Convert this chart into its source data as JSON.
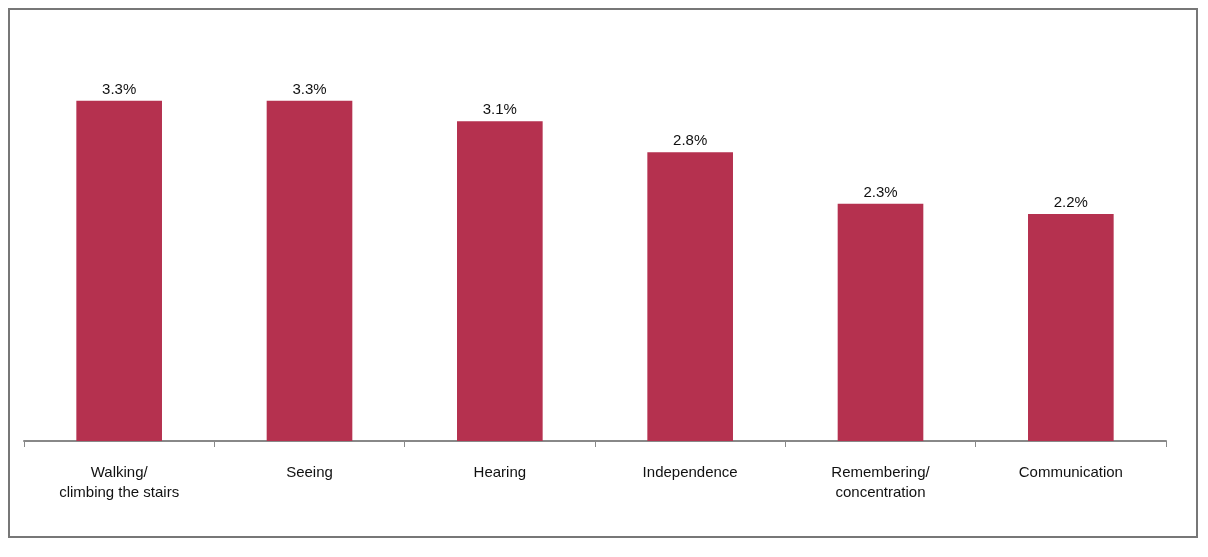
{
  "chart_data": {
    "type": "bar",
    "categories": [
      "Walking/\nclimbing the stairs",
      "Seeing",
      "Hearing",
      "Independence",
      "Remembering/\nconcentration",
      "Communication"
    ],
    "values": [
      3.3,
      3.3,
      3.1,
      2.8,
      2.3,
      2.2
    ],
    "color": "#b5314f",
    "value_labels": [
      "3.3%",
      "3.3%",
      "3.1%",
      "2.8%",
      "2.3%",
      "2.2%"
    ]
  }
}
